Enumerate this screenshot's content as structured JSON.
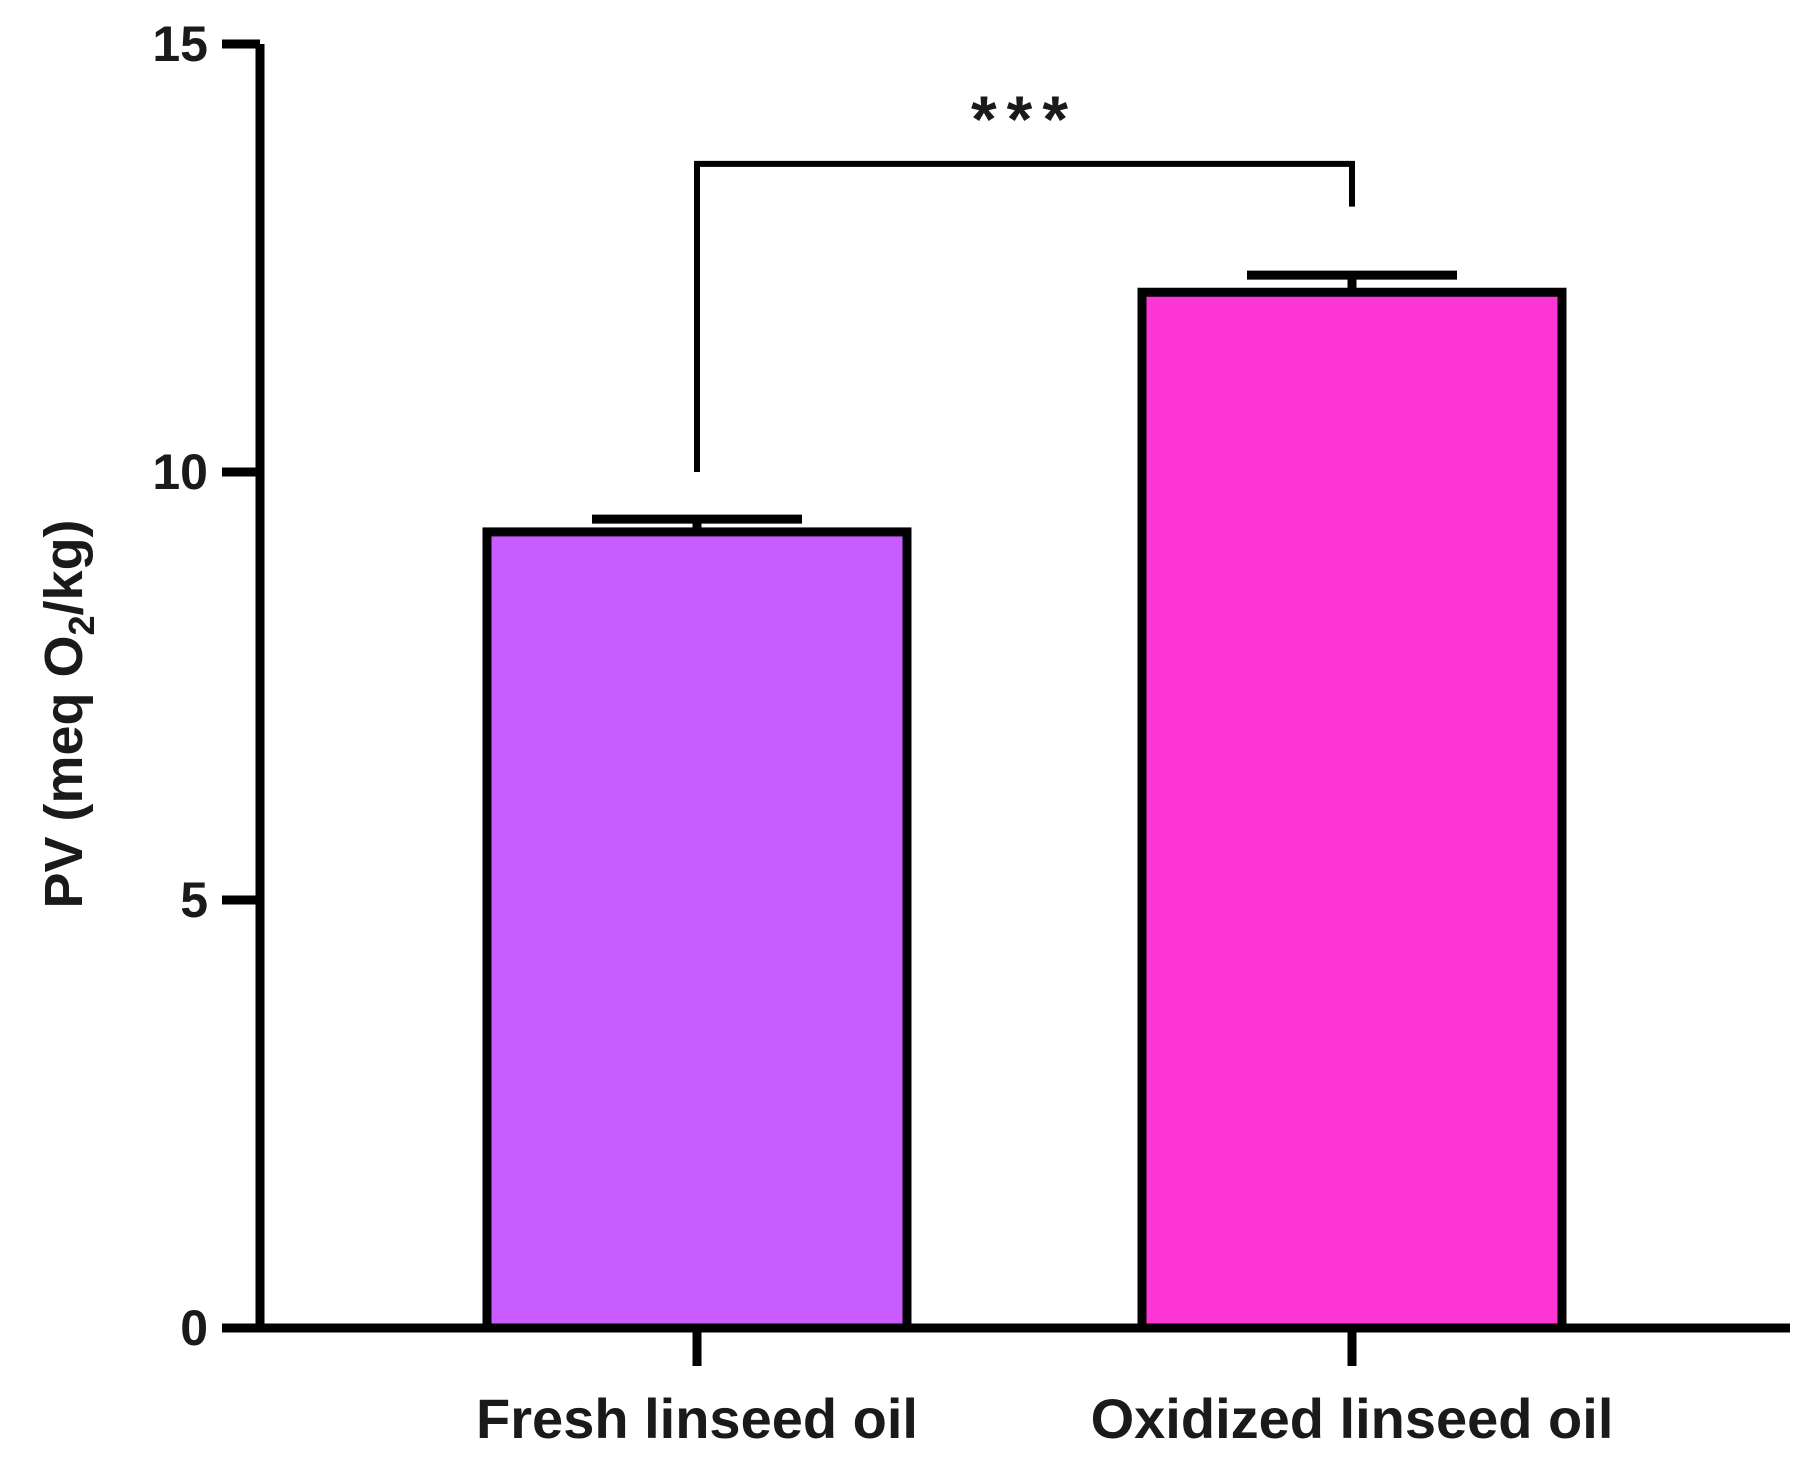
{
  "chart_data": {
    "type": "bar",
    "categories": [
      "Fresh linseed oil",
      "Oxidized linseed oil"
    ],
    "values": [
      9.3,
      12.1
    ],
    "errors": [
      0.15,
      0.2
    ],
    "colors": [
      "#c95cff",
      "#ff36d6"
    ],
    "ylabel_main": "PV (meq O",
    "ylabel_sub": "2",
    "ylabel_end": "/kg)",
    "ylim": [
      0,
      15
    ],
    "yticks": [
      0,
      5,
      10,
      15
    ],
    "ytick_labels": [
      "0",
      "5",
      "10",
      "15"
    ],
    "grid": false,
    "significance": {
      "label": "***",
      "pair": [
        0,
        1
      ],
      "bracket_y": 13.6,
      "left_drop_to": 10.0,
      "right_drop_to": 13.1
    }
  }
}
